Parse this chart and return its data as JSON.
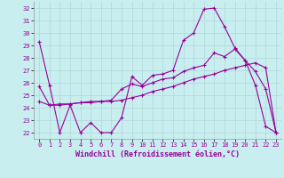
{
  "title": "",
  "xlabel": "Windchill (Refroidissement éolien,°C)",
  "ylabel": "",
  "bg_color": "#c8eef0",
  "line_color": "#990099",
  "grid_color": "#b0d8d8",
  "xlim": [
    -0.5,
    23.5
  ],
  "ylim": [
    21.5,
    32.5
  ],
  "yticks": [
    22,
    23,
    24,
    25,
    26,
    27,
    28,
    29,
    30,
    31,
    32
  ],
  "xticks": [
    0,
    1,
    2,
    3,
    4,
    5,
    6,
    7,
    8,
    9,
    10,
    11,
    12,
    13,
    14,
    15,
    16,
    17,
    18,
    19,
    20,
    21,
    22,
    23
  ],
  "line1_x": [
    0,
    1,
    2,
    3,
    4,
    5,
    6,
    7,
    8,
    9,
    10,
    11,
    12,
    13,
    14,
    15,
    16,
    17,
    18,
    19,
    20,
    21,
    22,
    23
  ],
  "line1_y": [
    29.3,
    25.8,
    22.0,
    24.2,
    22.0,
    22.8,
    22.0,
    22.0,
    23.2,
    26.5,
    25.8,
    26.6,
    26.7,
    27.0,
    29.4,
    30.0,
    31.9,
    32.0,
    30.5,
    28.8,
    27.8,
    25.8,
    22.5,
    22.0
  ],
  "line2_x": [
    0,
    1,
    2,
    3,
    4,
    5,
    6,
    7,
    8,
    9,
    10,
    11,
    12,
    13,
    14,
    15,
    16,
    17,
    18,
    19,
    20,
    21,
    22,
    23
  ],
  "line2_y": [
    25.7,
    24.2,
    24.3,
    24.3,
    24.4,
    24.5,
    24.5,
    24.6,
    25.5,
    25.9,
    25.7,
    26.0,
    26.3,
    26.4,
    26.9,
    27.2,
    27.4,
    28.4,
    28.1,
    28.7,
    27.8,
    26.9,
    25.5,
    22.0
  ],
  "line3_x": [
    0,
    1,
    2,
    3,
    4,
    5,
    6,
    7,
    8,
    9,
    10,
    11,
    12,
    13,
    14,
    15,
    16,
    17,
    18,
    19,
    20,
    21,
    22,
    23
  ],
  "line3_y": [
    24.5,
    24.2,
    24.2,
    24.3,
    24.4,
    24.4,
    24.5,
    24.5,
    24.6,
    24.8,
    25.0,
    25.3,
    25.5,
    25.7,
    26.0,
    26.3,
    26.5,
    26.7,
    27.0,
    27.2,
    27.4,
    27.6,
    27.2,
    22.0
  ],
  "marker": "+",
  "markersize": 3,
  "linewidth": 0.8,
  "tick_fontsize": 5,
  "label_fontsize": 6,
  "label_fontweight": "bold"
}
